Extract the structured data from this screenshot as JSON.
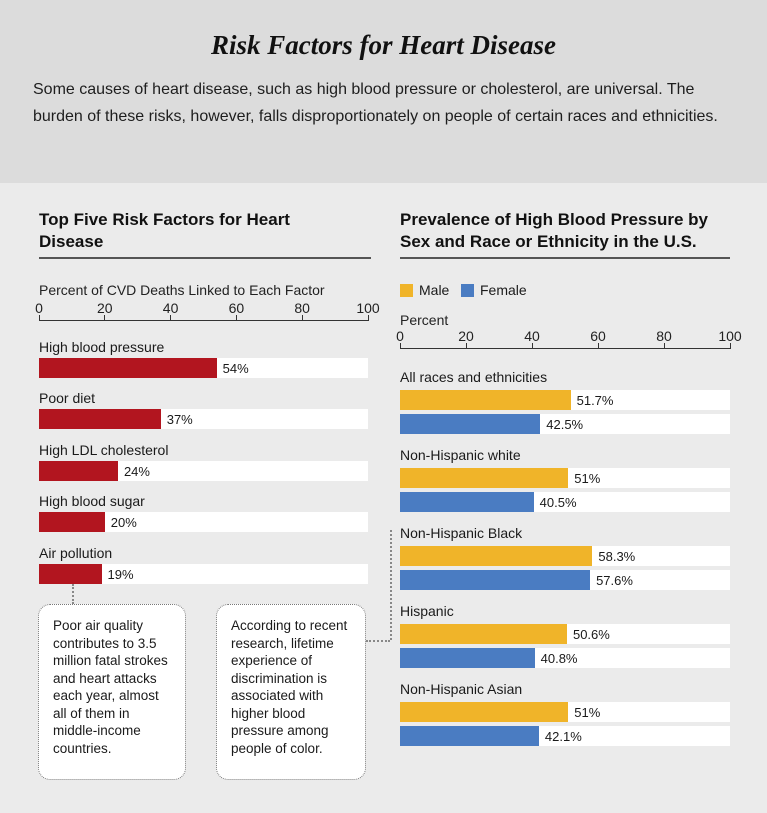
{
  "title": "Risk Factors for Heart Disease",
  "intro": "Some causes of heart disease, such as high blood pressure or cholesterol, are universal. The burden of these risks, however, falls disproportionately on people of certain races and ethnicities.",
  "colors": {
    "red": "#b2151f",
    "male": "#f0b429",
    "female": "#4a7cc2"
  },
  "chart_data": [
    {
      "type": "bar",
      "orientation": "horizontal",
      "title": "Top Five Risk Factors for Heart Disease",
      "xlabel": "Percent of CVD Deaths Linked to Each Factor",
      "xlim": [
        0,
        100
      ],
      "ticks": [
        "0",
        "20",
        "40",
        "60",
        "80",
        "100"
      ],
      "categories": [
        "High blood pressure",
        "Poor diet",
        "High LDL cholesterol",
        "High blood sugar",
        "Air pollution"
      ],
      "values": [
        54,
        37,
        24,
        20,
        19
      ],
      "value_labels": [
        "54%",
        "37%",
        "24%",
        "20%",
        "19%"
      ],
      "annotations": [
        "Poor air quality contributes to 3.5 million fatal strokes and heart attacks each year, almost all of them in middle-income countries."
      ]
    },
    {
      "type": "bar",
      "orientation": "horizontal",
      "title": "Prevalence of High Blood Pressure by Sex and Race or Ethnicity in the U.S.",
      "xlabel": "Percent",
      "xlim": [
        0,
        100
      ],
      "ticks": [
        "0",
        "20",
        "40",
        "60",
        "80",
        "100"
      ],
      "categories": [
        "All races and ethnicities",
        "Non-Hispanic white",
        "Non-Hispanic Black",
        "Hispanic",
        "Non-Hispanic Asian"
      ],
      "series": [
        {
          "name": "Male",
          "values": [
            51.7,
            51,
            58.3,
            50.6,
            51
          ],
          "value_labels": [
            "51.7%",
            "51%",
            "58.3%",
            "50.6%",
            "51%"
          ]
        },
        {
          "name": "Female",
          "values": [
            42.5,
            40.5,
            57.6,
            40.8,
            42.1
          ],
          "value_labels": [
            "42.5%",
            "40.5%",
            "57.6%",
            "40.8%",
            "42.1%"
          ]
        }
      ],
      "legend": "top-left",
      "annotations": [
        "According to recent research, lifetime experience of discrimination is associated with higher blood pressure among people of color."
      ]
    }
  ]
}
